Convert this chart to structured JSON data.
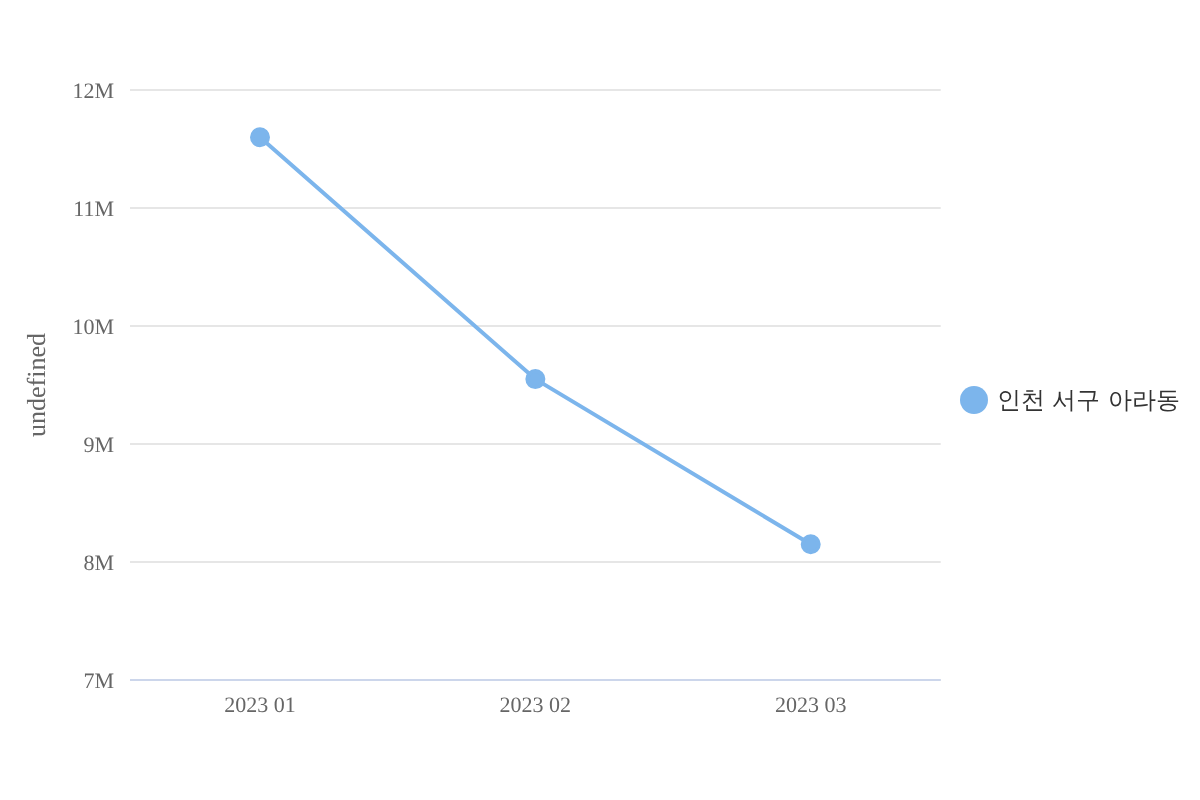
{
  "chart_data": {
    "type": "line",
    "ylabel": "undefined",
    "categories": [
      "2023 01",
      "2023 02",
      "2023 03"
    ],
    "series": [
      {
        "name": "인천 서구 아라동",
        "color": "#7cb5ec",
        "values": [
          11600000,
          9550000,
          8150000
        ]
      }
    ],
    "ylim": [
      7000000,
      12000000
    ],
    "yticks": [
      {
        "value": 7000000,
        "label": "7M"
      },
      {
        "value": 8000000,
        "label": "8M"
      },
      {
        "value": 9000000,
        "label": "9M"
      },
      {
        "value": 10000000,
        "label": "10M"
      },
      {
        "value": 11000000,
        "label": "11M"
      },
      {
        "value": 12000000,
        "label": "12M"
      }
    ],
    "grid": "y",
    "legend": "right",
    "marker": "circle",
    "line_style": "solid"
  }
}
